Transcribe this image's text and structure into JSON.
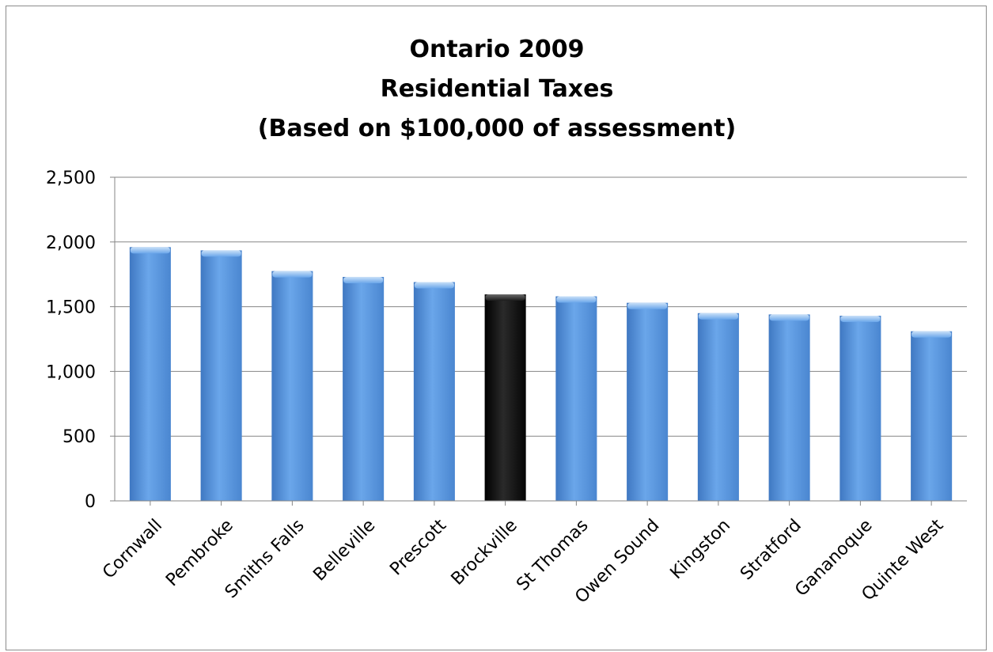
{
  "chart_data": {
    "type": "bar",
    "title_lines": [
      "Ontario 2009",
      "Residential Taxes",
      "(Based on $100,000 of assessment)"
    ],
    "xlabel": "",
    "ylabel": "",
    "categories": [
      "Cornwall",
      "Pembroke",
      "Smiths Falls",
      "Belleville",
      "Prescott",
      "Brockville",
      "St Thomas",
      "Owen Sound",
      "Kingston",
      "Stratford",
      "Gananoque",
      "Quinte West"
    ],
    "values": [
      1960,
      1935,
      1775,
      1730,
      1690,
      1595,
      1580,
      1530,
      1450,
      1440,
      1430,
      1310
    ],
    "highlight_category": "Brockville",
    "ylim": [
      0,
      2500
    ],
    "yticks": [
      0,
      500,
      1000,
      1500,
      2000,
      2500
    ],
    "ytick_labels": [
      "0",
      "500",
      "1,000",
      "1,500",
      "2,000",
      "2,500"
    ],
    "grid": true,
    "legend": "none",
    "colors": {
      "bar": "#5b96dc",
      "bar_highlight": "#111111",
      "grid": "#868686",
      "axis": "#868686"
    }
  }
}
